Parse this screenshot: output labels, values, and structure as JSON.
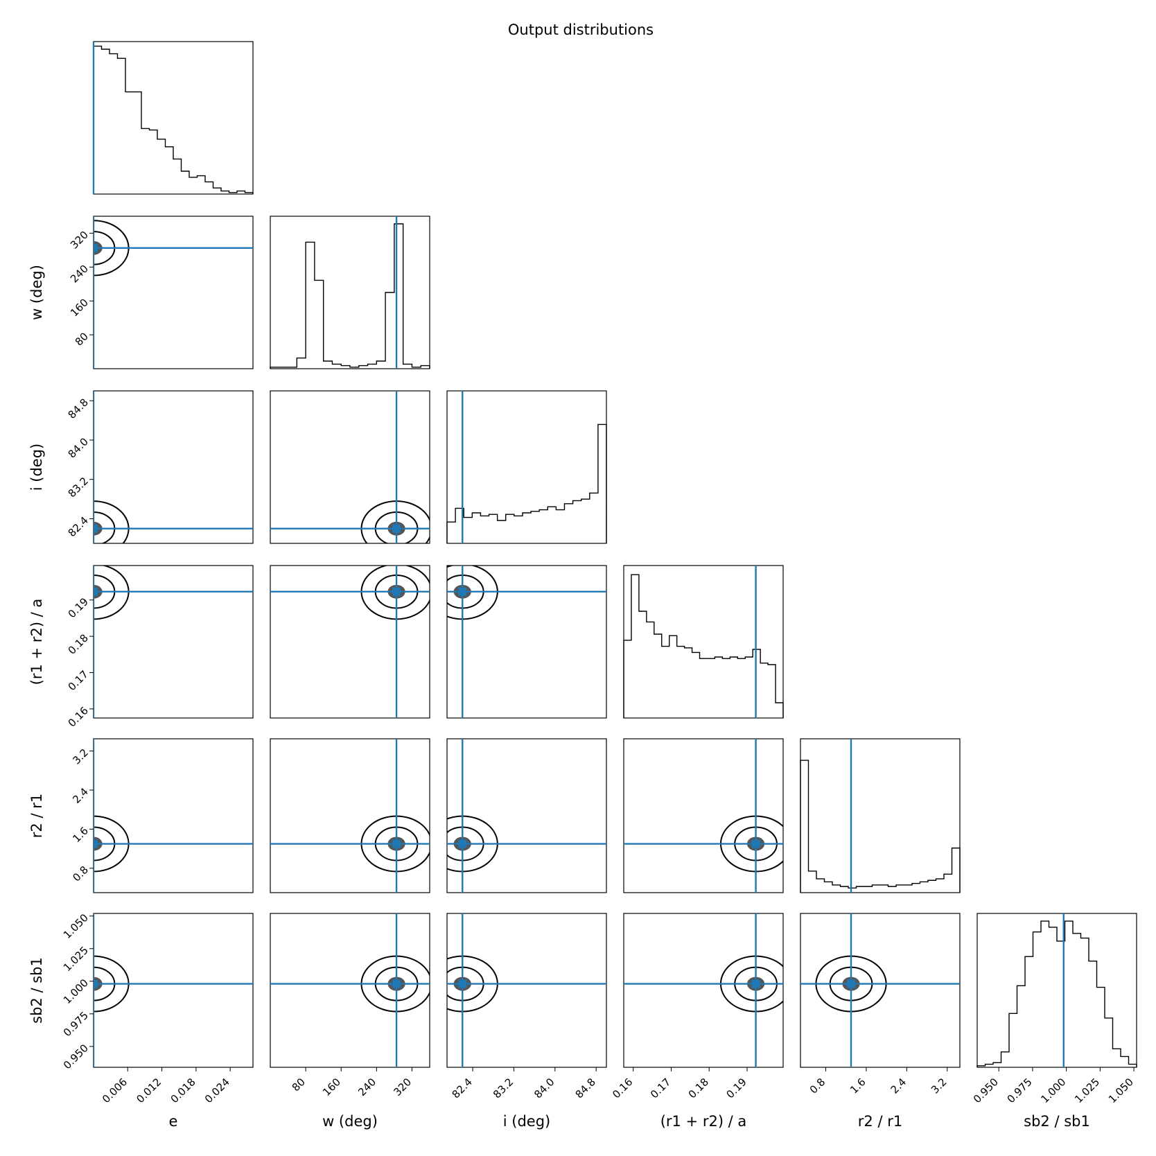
{
  "title": "Output distributions",
  "chart_data": {
    "type": "corner",
    "title": "Output distributions",
    "parameters": [
      {
        "key": "e",
        "label": "e",
        "range": [
          0,
          0.028
        ],
        "ticks": [
          0.006,
          0.012,
          0.018,
          0.024
        ],
        "tick_labels": [
          "0.006",
          "0.012",
          "0.018",
          "0.024"
        ],
        "truth": 0.0,
        "hist": [
          0.97,
          0.95,
          0.92,
          0.89,
          0.67,
          0.67,
          0.43,
          0.42,
          0.36,
          0.31,
          0.23,
          0.15,
          0.11,
          0.12,
          0.08,
          0.04,
          0.02,
          0.01,
          0.02,
          0.01
        ]
      },
      {
        "key": "w",
        "label": "w (deg)",
        "range": [
          0,
          360
        ],
        "ticks": [
          80,
          160,
          240,
          320
        ],
        "tick_labels": [
          "80",
          "160",
          "240",
          "320"
        ],
        "truth": 285,
        "hist": [
          0.01,
          0.01,
          0.01,
          0.07,
          0.83,
          0.58,
          0.05,
          0.03,
          0.02,
          0.01,
          0.02,
          0.03,
          0.05,
          0.5,
          0.95,
          0.03,
          0.01,
          0.02
        ]
      },
      {
        "key": "i",
        "label": "i (deg)",
        "range": [
          81.9,
          85.0
        ],
        "ticks": [
          82.4,
          83.2,
          84.0,
          84.8
        ],
        "tick_labels": [
          "82.4",
          "83.2",
          "84.0",
          "84.8"
        ],
        "truth": 82.2,
        "hist": [
          0.14,
          0.23,
          0.17,
          0.2,
          0.18,
          0.19,
          0.15,
          0.19,
          0.18,
          0.2,
          0.21,
          0.22,
          0.24,
          0.22,
          0.26,
          0.28,
          0.29,
          0.33,
          0.78
        ]
      },
      {
        "key": "r_sum_a",
        "label": "(r1 + r2) / a",
        "range": [
          0.1575,
          0.1995
        ],
        "ticks": [
          0.16,
          0.17,
          0.18,
          0.19
        ],
        "tick_labels": [
          "0.16",
          "0.17",
          "0.18",
          "0.19"
        ],
        "truth": 0.1923,
        "hist": [
          0.51,
          0.94,
          0.7,
          0.63,
          0.55,
          0.47,
          0.54,
          0.47,
          0.46,
          0.43,
          0.39,
          0.39,
          0.4,
          0.39,
          0.4,
          0.39,
          0.4,
          0.45,
          0.36,
          0.35,
          0.1
        ]
      },
      {
        "key": "r_ratio",
        "label": "r2 / r1",
        "range": [
          0.3,
          3.45
        ],
        "ticks": [
          0.8,
          1.6,
          2.4,
          3.2
        ],
        "tick_labels": [
          "0.8",
          "1.6",
          "2.4",
          "3.2"
        ],
        "truth": 1.3,
        "hist": [
          0.86,
          0.14,
          0.09,
          0.07,
          0.05,
          0.04,
          0.03,
          0.04,
          0.04,
          0.05,
          0.05,
          0.04,
          0.05,
          0.05,
          0.06,
          0.07,
          0.08,
          0.09,
          0.12,
          0.29
        ]
      },
      {
        "key": "sb_ratio",
        "label": "sb2 / sb1",
        "range": [
          0.934,
          1.052
        ],
        "ticks": [
          0.95,
          0.975,
          1.0,
          1.025,
          1.05
        ],
        "tick_labels": [
          "0.950",
          "0.975",
          "1.000",
          "1.025",
          "1.050"
        ],
        "truth": 0.998,
        "hist": [
          0.01,
          0.02,
          0.03,
          0.1,
          0.35,
          0.53,
          0.72,
          0.88,
          0.95,
          0.91,
          0.82,
          0.95,
          0.87,
          0.84,
          0.69,
          0.52,
          0.32,
          0.12,
          0.07,
          0.02
        ]
      }
    ],
    "y_axis_ticks": {
      "w": [
        "80",
        "160",
        "240",
        "320"
      ],
      "i": [
        "82.4",
        "83.2",
        "84.0",
        "84.8"
      ],
      "r_sum_a": [
        "0.16",
        "0.17",
        "0.18",
        "0.19"
      ],
      "r_ratio": [
        "0.8",
        "1.6",
        "2.4",
        "3.2"
      ],
      "sb_ratio": [
        "0.950",
        "0.975",
        "1.000",
        "1.025",
        "1.050"
      ]
    },
    "truth_color": "#1f77b4"
  }
}
